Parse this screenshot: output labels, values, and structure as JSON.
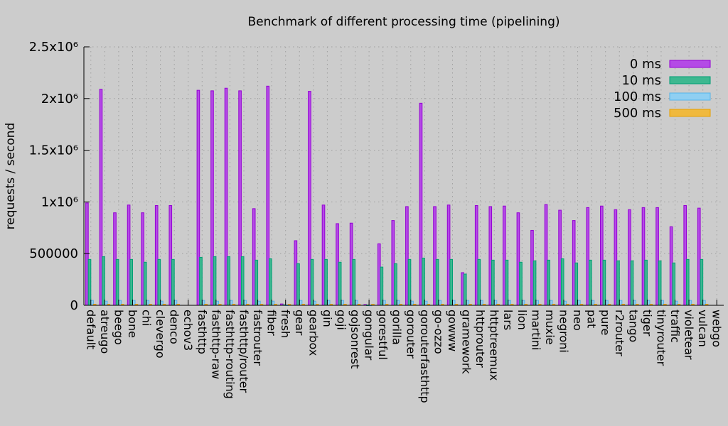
{
  "chart_data": {
    "type": "bar",
    "title": "Benchmark of different processing time (pipelining)",
    "xlabel": "",
    "ylabel": "requests / second",
    "ylim": [
      0,
      2500000
    ],
    "yticks": [
      0,
      500000,
      1000000,
      1500000,
      2000000,
      2500000
    ],
    "ytick_labels": [
      "0",
      "500000",
      "1x10⁶",
      "1.5x10⁶",
      "2x10⁶",
      "2.5x10⁶"
    ],
    "grid": true,
    "legend_position": "top-right",
    "categories": [
      "default",
      "atreugo",
      "beego",
      "bone",
      "chi",
      "clevergo",
      "denco",
      "echov3",
      "fasthttp",
      "fasthttp-raw",
      "fasthttp-routing",
      "fasthttp/router",
      "fastrouter",
      "fiber",
      "fresh",
      "gear",
      "gearbox",
      "gin",
      "goji",
      "gojsonrest",
      "gongular",
      "gorestful",
      "gorilla",
      "gorouter",
      "gorouterfasthttp",
      "go-ozzo",
      "gowww",
      "gramework",
      "httprouter",
      "httptreemux",
      "lars",
      "lion",
      "martini",
      "muxie",
      "negroni",
      "neo",
      "pat",
      "pure",
      "r2router",
      "tango",
      "tiger",
      "tinyrouter",
      "traffic",
      "violetear",
      "vulcan",
      "webgo"
    ],
    "series": [
      {
        "name": "0 ms",
        "color": "#9400d3",
        "fill": "#b44ae6",
        "values": [
          990000,
          2090000,
          895000,
          970000,
          895000,
          965000,
          965000,
          0,
          2080000,
          2075000,
          2100000,
          2075000,
          935000,
          2120000,
          13000,
          625000,
          2070000,
          970000,
          790000,
          795000,
          7000,
          595000,
          820000,
          955000,
          1955000,
          955000,
          970000,
          316000,
          965000,
          955000,
          960000,
          895000,
          725000,
          975000,
          920000,
          820000,
          945000,
          960000,
          925000,
          925000,
          945000,
          945000,
          760000,
          965000,
          940000,
          0
        ]
      },
      {
        "name": "10 ms",
        "color": "#009e73",
        "fill": "#3db890",
        "values": [
          444000,
          470000,
          444000,
          444000,
          417000,
          444000,
          444000,
          0,
          464000,
          470000,
          470000,
          470000,
          437000,
          450000,
          5000,
          403000,
          444000,
          444000,
          417000,
          444000,
          3000,
          370000,
          403000,
          444000,
          457000,
          444000,
          444000,
          302000,
          444000,
          437000,
          437000,
          417000,
          430000,
          437000,
          450000,
          410000,
          437000,
          437000,
          430000,
          430000,
          437000,
          430000,
          410000,
          444000,
          444000,
          0
        ]
      },
      {
        "name": "100 ms",
        "color": "#56b4e9",
        "fill": "#8fcff2",
        "values": [
          47000,
          40000,
          47000,
          47000,
          47000,
          40000,
          47000,
          0,
          47000,
          40000,
          47000,
          47000,
          40000,
          40000,
          2000,
          47000,
          40000,
          47000,
          47000,
          47000,
          1000,
          47000,
          47000,
          40000,
          40000,
          47000,
          47000,
          47000,
          47000,
          47000,
          47000,
          47000,
          47000,
          47000,
          40000,
          47000,
          47000,
          47000,
          47000,
          47000,
          47000,
          47000,
          40000,
          47000,
          47000,
          0
        ]
      },
      {
        "name": "500 ms",
        "color": "#e69f00",
        "fill": "#f0b93e",
        "values": [
          10000,
          10000,
          10000,
          10000,
          10000,
          10000,
          10000,
          0,
          10000,
          10000,
          10000,
          10000,
          10000,
          10000,
          9000,
          10000,
          10000,
          10000,
          10000,
          10000,
          9000,
          10000,
          10000,
          10000,
          10000,
          10000,
          10000,
          10000,
          10000,
          10000,
          10000,
          10000,
          10000,
          10000,
          10000,
          10000,
          10000,
          10000,
          10000,
          10000,
          10000,
          10000,
          10000,
          10000,
          10000,
          0
        ]
      }
    ]
  }
}
